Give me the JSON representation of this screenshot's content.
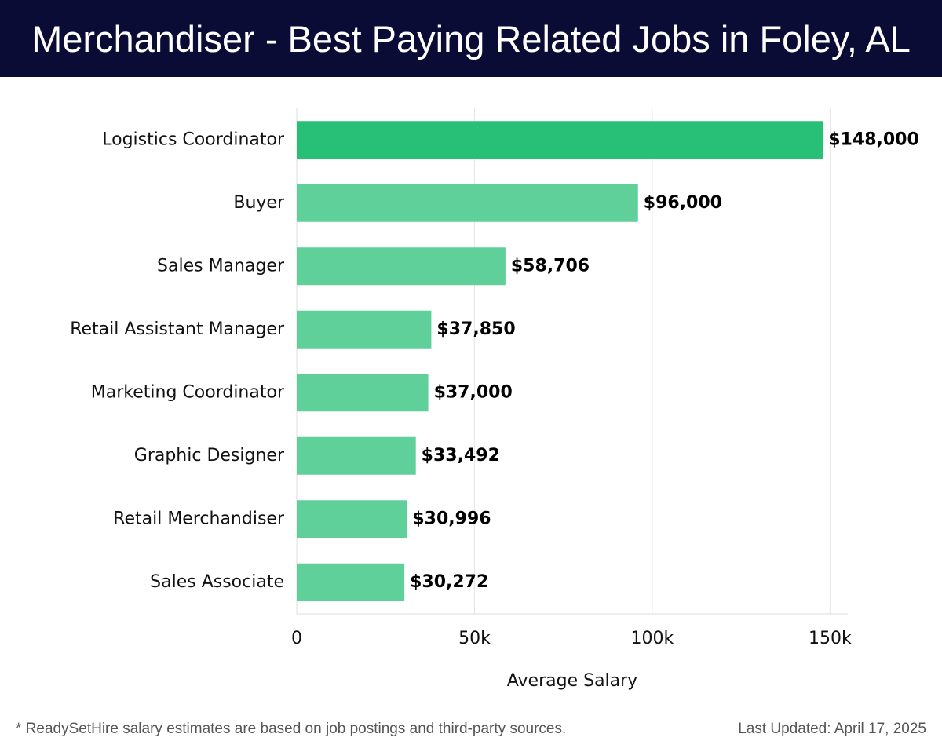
{
  "header": {
    "title": "Merchandiser - Best Paying Related Jobs in Foley, AL"
  },
  "footer": {
    "note": "* ReadySetHire salary estimates are based on job postings and third-party sources.",
    "updated": "Last Updated: April 17, 2025"
  },
  "colors": {
    "header_bg": "#0b0c35",
    "bar_top": "#27c076",
    "bar_other": "#52cc93"
  },
  "chart_data": {
    "type": "bar",
    "orientation": "horizontal",
    "title": "Merchandiser - Best Paying Related Jobs in Foley, AL",
    "xlabel": "Average Salary",
    "ylabel": "",
    "categories": [
      "Logistics Coordinator",
      "Buyer",
      "Sales Manager",
      "Retail Assistant Manager",
      "Marketing Coordinator",
      "Graphic Designer",
      "Retail Merchandiser",
      "Sales Associate"
    ],
    "values": [
      148000,
      96000,
      58706,
      37850,
      37000,
      33492,
      30996,
      30272
    ],
    "value_labels": [
      "$148,000",
      "$96,000",
      "$58,706",
      "$37,850",
      "$37,000",
      "$33,492",
      "$30,996",
      "$30,272"
    ],
    "xlim": [
      0,
      155000
    ],
    "xticks": [
      0,
      50000,
      100000,
      150000
    ],
    "xtick_labels": [
      "0",
      "50k",
      "100k",
      "150k"
    ],
    "grid": "vertical"
  }
}
